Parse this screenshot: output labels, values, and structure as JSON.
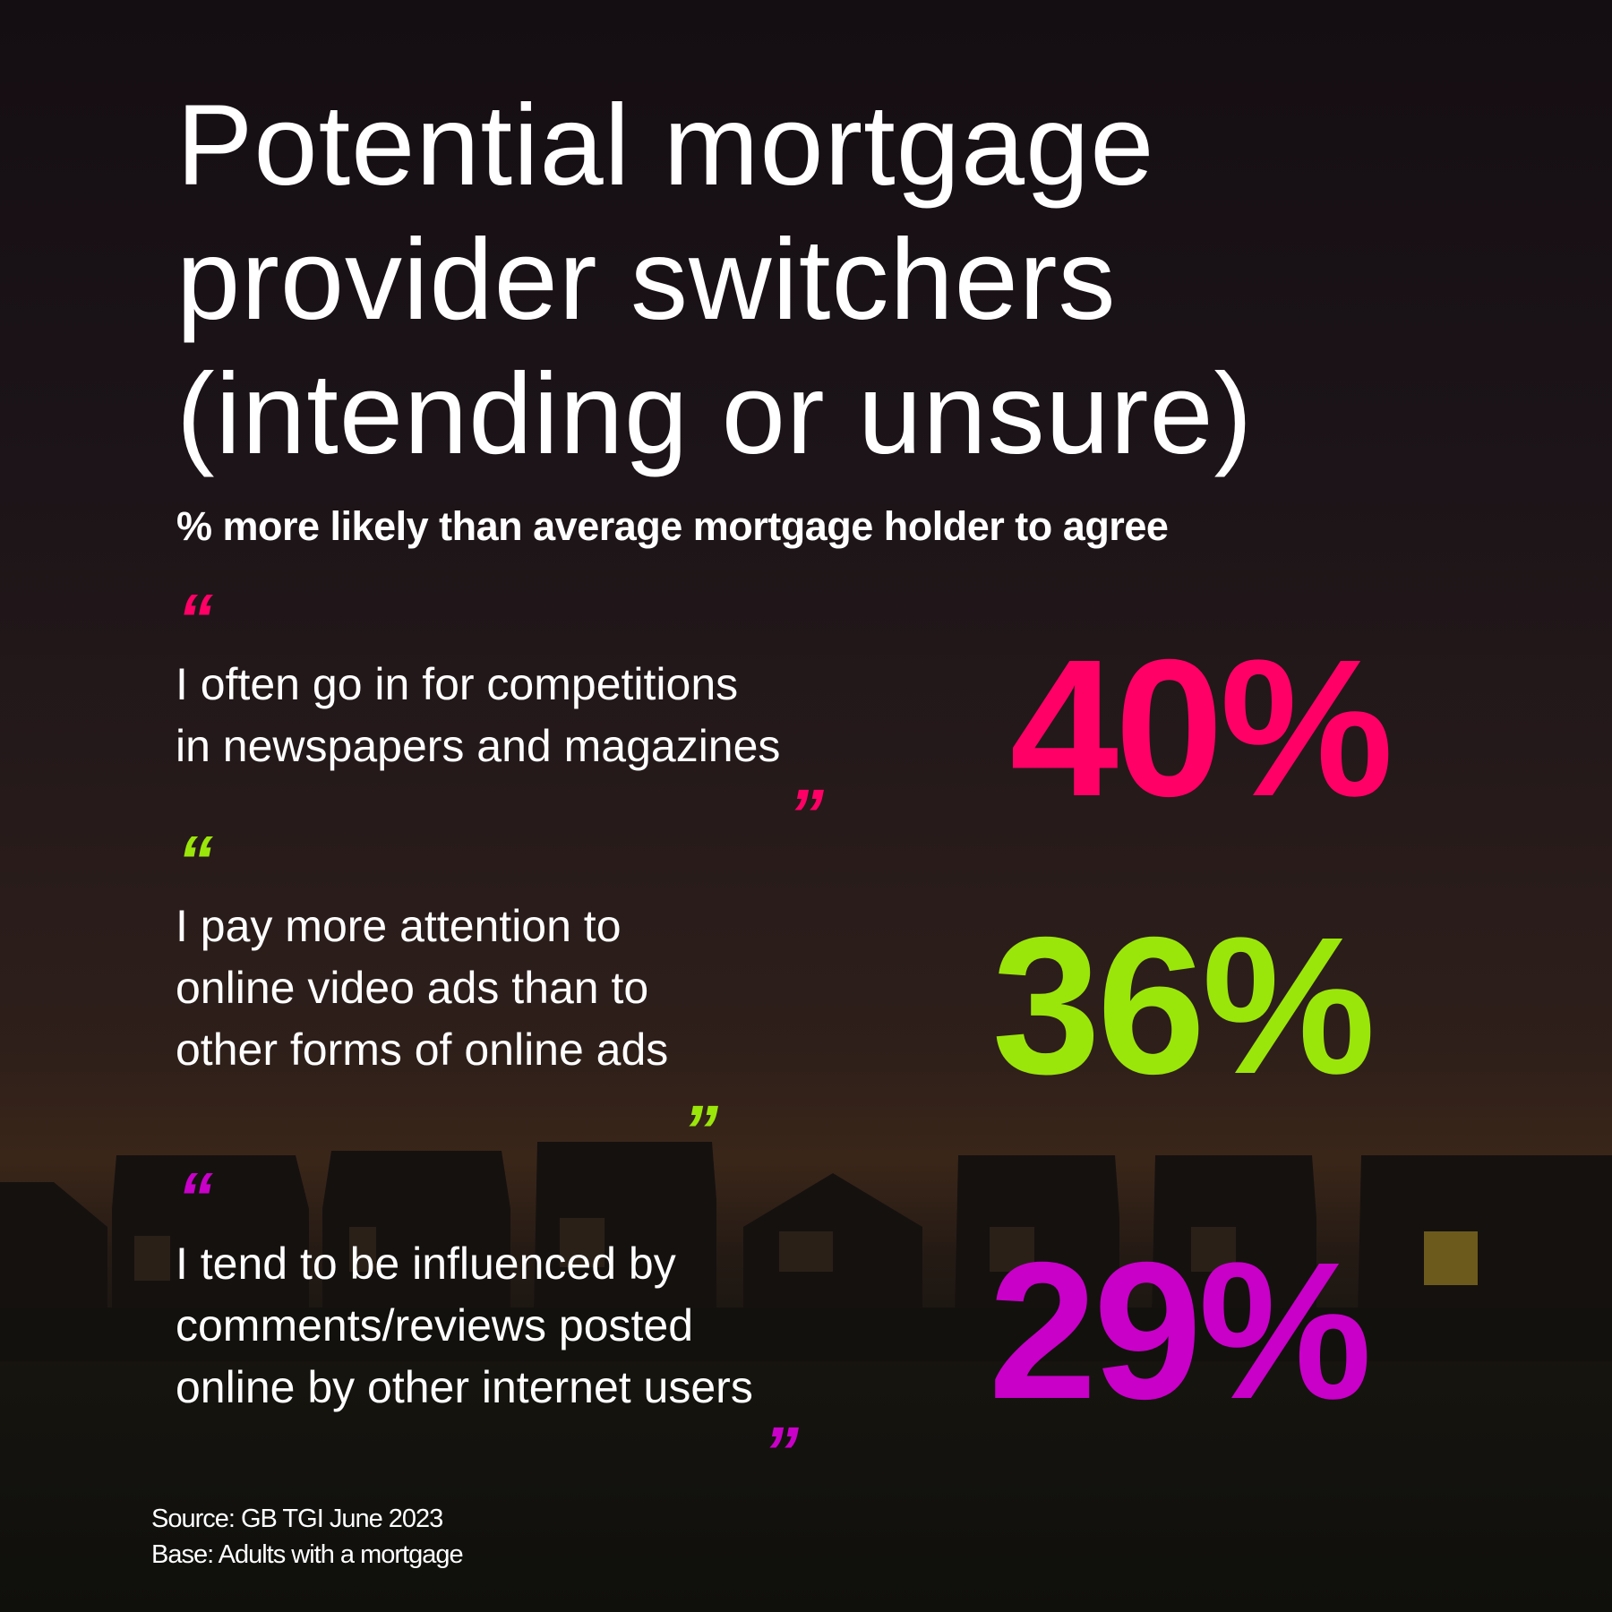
{
  "title_lines": [
    "Potential mortgage",
    "provider switchers",
    "(intending or unsure)"
  ],
  "subtitle": "% more likely than average mortgage holder to agree",
  "colors": {
    "pink": "#ff0066",
    "green": "#9be60a",
    "magenta": "#c800c8"
  },
  "stats": [
    {
      "lines": [
        "I often go in for competitions",
        "in newspapers and magazines"
      ],
      "value": "40%",
      "open_quote": "“",
      "close_quote": "”"
    },
    {
      "lines": [
        "I pay more attention to",
        "online video ads than to",
        "other forms of online ads"
      ],
      "value": "36%",
      "open_quote": "“",
      "close_quote": "”"
    },
    {
      "lines": [
        "I tend to be influenced by",
        "comments/reviews posted",
        "online by other internet users"
      ],
      "value": "29%",
      "open_quote": "“",
      "close_quote": "”"
    }
  ],
  "source": "Source: GB TGI June 2023",
  "base": "Base: Adults with a mortgage"
}
